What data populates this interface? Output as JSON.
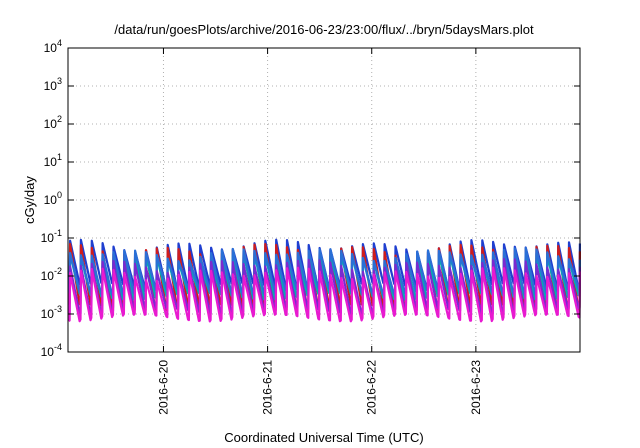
{
  "chart_data": {
    "type": "line",
    "title": "/data/run/goesPlots/archive/2016-06-23/23:00/flux/../bryn/5daysMars.plot",
    "xlabel": "Coordinated Universal Time (UTC)",
    "ylabel": "cGy/day",
    "yscale": "log",
    "ylim": [
      0.0001,
      10000
    ],
    "xlim": [
      "2016-06-19 02:00",
      "2016-06-24 00:00"
    ],
    "y_ticks": [
      {
        "base": "10",
        "exp": "-4",
        "value": 0.0001
      },
      {
        "base": "10",
        "exp": "-3",
        "value": 0.001
      },
      {
        "base": "10",
        "exp": "-2",
        "value": 0.01
      },
      {
        "base": "10",
        "exp": "-1",
        "value": 0.1
      },
      {
        "base": "10",
        "exp": "0",
        "value": 1
      },
      {
        "base": "10",
        "exp": "1",
        "value": 10
      },
      {
        "base": "10",
        "exp": "2",
        "value": 100
      },
      {
        "base": "10",
        "exp": "3",
        "value": 1000
      },
      {
        "base": "10",
        "exp": "4",
        "value": 10000
      }
    ],
    "x_ticks": [
      {
        "label": "2016-6-20",
        "date": "2016-06-20 00:00"
      },
      {
        "label": "2016-6-21",
        "date": "2016-06-21 00:00"
      },
      {
        "label": "2016-6-22",
        "date": "2016-06-22 00:00"
      },
      {
        "label": "2016-6-23",
        "date": "2016-06-23 00:00"
      }
    ],
    "grid": true,
    "pattern": "sawtooth",
    "cycles_per_day": 9.6,
    "series": [
      {
        "color": "#1f3fd0",
        "peak": 0.065,
        "trough": 0.0055
      },
      {
        "color": "#d01c1c",
        "peak": 0.05,
        "trough": 0.0015
      },
      {
        "color": "#00b0b0",
        "peak": 0.03,
        "trough": 0.003
      },
      {
        "color": "#2a6fd6",
        "peak": 0.04,
        "trough": 0.004
      },
      {
        "color": "#7a2ad0",
        "peak": 0.02,
        "trough": 0.0012
      },
      {
        "color": "#e81ad0",
        "peak": 0.012,
        "trough": 0.0008
      }
    ]
  }
}
